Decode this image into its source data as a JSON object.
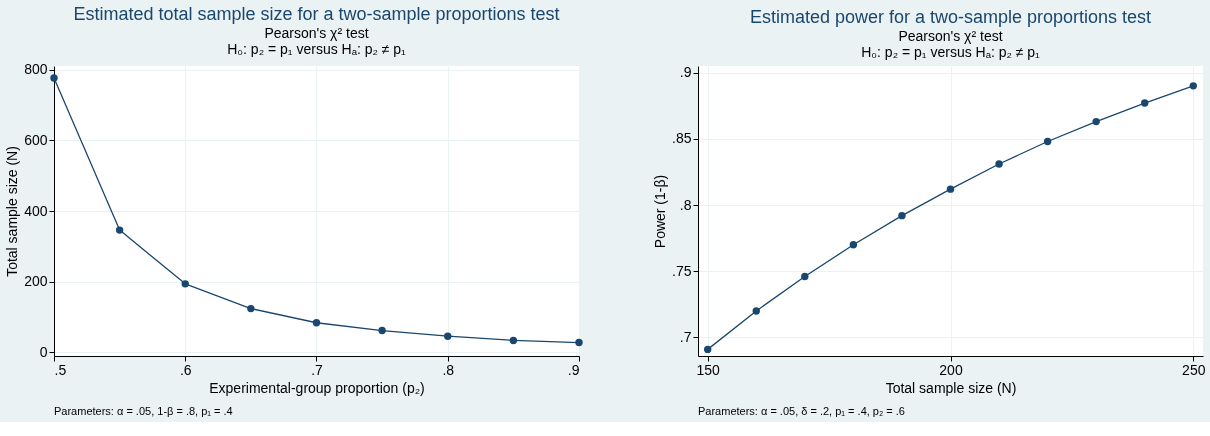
{
  "chart_data": [
    {
      "type": "line",
      "title": "Estimated total sample size for a two-sample proportions test",
      "subtitle": "Pearson's χ² test\nH₀: p₂ = p₁  versus  Hₐ: p₂ ≠ p₁",
      "xlabel": "Experimental-group proportion (p₂)",
      "ylabel": "Total sample size (N)",
      "x": [
        0.5,
        0.55,
        0.6,
        0.65,
        0.7,
        0.75,
        0.8,
        0.85,
        0.9
      ],
      "series": [
        {
          "color": "#1a476f",
          "values": [
            776,
            346,
            194,
            124,
            84,
            62,
            46,
            34,
            28
          ]
        }
      ],
      "xlim": [
        0.5,
        0.9
      ],
      "xticks": [
        {
          "value": 0.5,
          "label": ".5"
        },
        {
          "value": 0.6,
          "label": ".6"
        },
        {
          "value": 0.7,
          "label": ".7"
        },
        {
          "value": 0.8,
          "label": ".8"
        },
        {
          "value": 0.9,
          "label": ".9"
        }
      ],
      "ylim": [
        -10,
        810
      ],
      "yticks": [
        0,
        200,
        400,
        600,
        800
      ],
      "grid": true,
      "marker": "circle",
      "line_style": "solid",
      "annotations": [
        "Parameters: α = .05, 1-β = .8, p₁ = .4"
      ]
    },
    {
      "type": "line",
      "title": "Estimated power for a two-sample proportions test",
      "subtitle": "Pearson's χ² test\nH₀: p₂ = p₁  versus  Hₐ: p₂ ≠ p₁",
      "xlabel": "Total sample size (N)",
      "ylabel": "Power (1-β)",
      "x": [
        150,
        160,
        170,
        180,
        190,
        200,
        210,
        220,
        230,
        240,
        250
      ],
      "series": [
        {
          "color": "#1a476f",
          "values": [
            0.691,
            0.72,
            0.746,
            0.77,
            0.792,
            0.812,
            0.831,
            0.848,
            0.863,
            0.877,
            0.89
          ]
        }
      ],
      "xlim": [
        148,
        252
      ],
      "xticks": [
        150,
        200,
        250
      ],
      "ylim": [
        0.686,
        0.905
      ],
      "yticks": [
        {
          "value": 0.7,
          "label": ".7"
        },
        {
          "value": 0.75,
          "label": ".75"
        },
        {
          "value": 0.8,
          "label": ".8"
        },
        {
          "value": 0.85,
          "label": ".85"
        },
        {
          "value": 0.9,
          "label": ".9"
        }
      ],
      "grid": true,
      "marker": "circle",
      "line_style": "solid",
      "annotations": [
        "Parameters: α = .05, δ = .2, p₁ = .4, p₂ = .6"
      ]
    }
  ]
}
